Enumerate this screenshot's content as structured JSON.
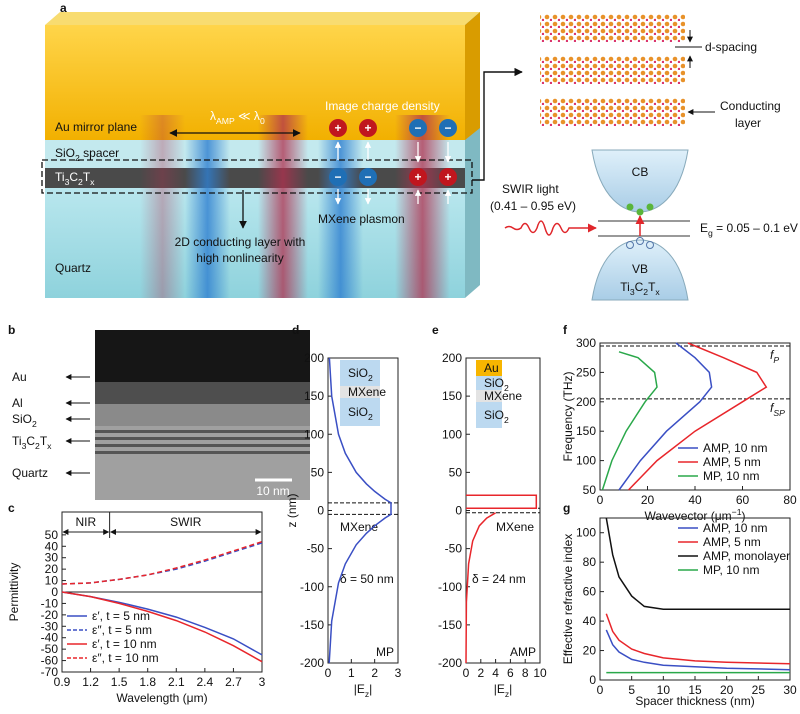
{
  "panel_a": {
    "label": "a",
    "au_mirror": "Au mirror plane",
    "wavelength_relation": [
      "λ",
      {
        "sub": "AMP"
      },
      " ≪ λ",
      {
        "sub": "0"
      }
    ],
    "image_charge": "Image charge density",
    "spacer": [
      "SiO",
      {
        "sub": "2"
      },
      " spacer"
    ],
    "mxene": [
      "Ti",
      {
        "sub": "3"
      },
      "C",
      {
        "sub": "2"
      },
      "T",
      {
        "sub": "x"
      }
    ],
    "plasmon": "MXene plasmon",
    "conducting_note": [
      "2D conducting layer with",
      "high nonlinearity"
    ],
    "quartz": "Quartz",
    "d_spacing": "d-spacing",
    "conducting_layer": [
      "Conducting",
      "layer"
    ],
    "swir": [
      "SWIR light",
      "(0.41 – 0.95 eV)"
    ],
    "cb": "CB",
    "vb": "VB",
    "gap": [
      "E",
      {
        "sub": "g"
      },
      " = 0.05 – 0.1 eV"
    ],
    "material": [
      "Ti",
      {
        "sub": "3"
      },
      "C",
      {
        "sub": "2"
      },
      "T",
      {
        "sub": "x"
      }
    ],
    "charges": {
      "positive": "+",
      "negative": "−"
    }
  },
  "panel_b": {
    "label": "b",
    "layers": [
      "Au",
      "Al",
      [
        "SiO",
        {
          "sub": "2"
        }
      ],
      [
        "Ti",
        {
          "sub": "3"
        },
        "C",
        {
          "sub": "2"
        },
        "T",
        {
          "sub": "x"
        }
      ],
      "Quartz"
    ],
    "scale_bar": "10 nm"
  },
  "chart_data": [
    {
      "type": "line",
      "panel_label": "c",
      "x": [
        0.9,
        1.2,
        1.5,
        1.8,
        2.1,
        2.4,
        2.7,
        3
      ],
      "xlim": [
        0.9,
        3
      ],
      "xticks": [
        0.9,
        1.2,
        1.5,
        1.8,
        2.1,
        2.4,
        2.7,
        3
      ],
      "ylim": [
        -70,
        70
      ],
      "yticks": [
        -70,
        -60,
        -50,
        -40,
        -30,
        -20,
        -10,
        0,
        10,
        20,
        30,
        40,
        50
      ],
      "xlabel": "Wavelength (μm)",
      "ylabel": "Permittivity",
      "regions": [
        "NIR",
        "SWIR"
      ],
      "region_boundary": 1.4,
      "legend": "lower left",
      "series": [
        {
          "name": "ε′, t = 5 nm",
          "color": "#3a4fc4",
          "dash": false,
          "values": [
            0,
            -4,
            -9,
            -15,
            -22,
            -31,
            -41,
            -55
          ]
        },
        {
          "name": "ε″, t = 5 nm",
          "color": "#3a4fc4",
          "dash": true,
          "values": [
            7,
            8,
            11,
            15,
            20,
            27,
            35,
            43
          ]
        },
        {
          "name": "ε′, t = 10 nm",
          "color": "#e8262b",
          "dash": false,
          "values": [
            0,
            -4,
            -10,
            -17,
            -25,
            -35,
            -47,
            -61
          ]
        },
        {
          "name": "ε″, t = 10 nm",
          "color": "#e8262b",
          "dash": true,
          "values": [
            7,
            8,
            11,
            15,
            21,
            28,
            36,
            44
          ]
        }
      ]
    },
    {
      "type": "line",
      "panel_label": "d",
      "xlim": [
        0,
        3
      ],
      "xticks": [
        0,
        1,
        2,
        3
      ],
      "ylim": [
        -200,
        200
      ],
      "yticks": [
        -200,
        -150,
        -100,
        -50,
        0,
        50,
        100,
        150,
        200
      ],
      "xlabel": [
        "|E",
        {
          "sub": "z"
        },
        "|"
      ],
      "ylabel": "z (nm)",
      "layers": [
        {
          "label": [
            "SiO",
            {
              "sub": "2"
            }
          ],
          "color": "#bcd9f0"
        },
        {
          "label": "MXene",
          "color": "#e3e3e3"
        },
        {
          "label": [
            "SiO",
            {
              "sub": "2"
            }
          ],
          "color": "#bcd9f0"
        }
      ],
      "annotations": [
        "MXene",
        "δ = 50 nm",
        "MP"
      ],
      "dashed_levels": [
        10,
        -5
      ],
      "series": [
        {
          "color": "#3a4fc4",
          "x": [
            0.06,
            0.16,
            0.45,
            0.74,
            1.21,
            1.64,
            2.0,
            2.44,
            2.7,
            2.7,
            2.44,
            2.0,
            1.64,
            1.21,
            0.74,
            0.45,
            0.16,
            0.05
          ],
          "values": [
            200,
            150,
            100,
            75,
            50,
            35,
            25,
            15,
            10,
            -5,
            -10,
            -20,
            -30,
            -45,
            -70,
            -95,
            -145,
            -200
          ]
        }
      ]
    },
    {
      "type": "line",
      "panel_label": "e",
      "xlim": [
        0,
        10
      ],
      "xticks": [
        0,
        2,
        4,
        6,
        8,
        10
      ],
      "ylim": [
        -200,
        200
      ],
      "yticks": [
        -200,
        -150,
        -100,
        -50,
        0,
        50,
        100,
        150,
        200
      ],
      "xlabel": [
        "|E",
        {
          "sub": "z"
        },
        "|"
      ],
      "layers": [
        {
          "label": "Au",
          "color": "#f7b500"
        },
        {
          "label": [
            "SiO",
            {
              "sub": "2"
            }
          ],
          "color": "#bcd9f0"
        },
        {
          "label": "MXene",
          "color": "#e3e3e3"
        },
        {
          "label": [
            "SiO",
            {
              "sub": "2"
            }
          ],
          "color": "#bcd9f0"
        }
      ],
      "annotations": [
        "MXene",
        "δ = 24 nm",
        "AMP"
      ],
      "dashed_levels": [
        3,
        -3
      ],
      "series": [
        {
          "color": "#e8262b",
          "x": [
            0,
            9.5,
            9.5,
            0,
            null,
            4,
            2.8,
            1.8,
            0.9,
            0.35,
            0.06,
            0
          ],
          "values": [
            20,
            20,
            3,
            3,
            null,
            -3,
            -10,
            -20,
            -40,
            -70,
            -120,
            -200
          ]
        }
      ]
    },
    {
      "type": "line",
      "panel_label": "f",
      "xlim": [
        0,
        80
      ],
      "xticks": [
        0,
        20,
        40,
        60,
        80
      ],
      "ylim": [
        50,
        300
      ],
      "yticks": [
        50,
        100,
        150,
        200,
        250,
        300
      ],
      "xlabel": [
        "Wavevector (μm",
        {
          "sup": "−1"
        },
        ")"
      ],
      "ylabel": "Frequency (THz)",
      "reference_lines": [
        {
          "value": 295,
          "label": [
            "f",
            {
              "sub": "P"
            }
          ]
        },
        {
          "value": 205,
          "label": [
            "f",
            {
              "sub": "SP"
            }
          ]
        }
      ],
      "legend": "lower right",
      "series": [
        {
          "name": "AMP, 10 nm",
          "color": "#3a4fc4",
          "x": [
            8,
            17,
            28,
            42,
            47,
            46,
            40,
            32
          ],
          "values": [
            50,
            100,
            150,
            200,
            225,
            250,
            275,
            300
          ]
        },
        {
          "name": "AMP, 5 nm",
          "color": "#e8262b",
          "x": [
            12,
            24,
            40,
            60,
            70,
            66,
            52,
            37
          ],
          "values": [
            50,
            100,
            150,
            200,
            225,
            250,
            275,
            300
          ]
        },
        {
          "name": "MP, 10 nm",
          "color": "#2aa84a",
          "x": [
            1,
            5,
            11,
            19,
            24,
            23,
            16,
            8
          ],
          "values": [
            50,
            100,
            150,
            200,
            225,
            250,
            275,
            285
          ]
        }
      ]
    },
    {
      "type": "line",
      "panel_label": "g",
      "x": [
        1,
        2,
        3,
        5,
        7,
        10,
        15,
        20,
        30
      ],
      "xlim": [
        0,
        30
      ],
      "xticks": [
        0,
        5,
        10,
        15,
        20,
        25,
        30
      ],
      "ylim": [
        0,
        110
      ],
      "yticks": [
        0,
        20,
        40,
        60,
        80,
        100
      ],
      "xlabel": "Spacer thickness (nm)",
      "ylabel": "Effective refractive index",
      "legend": "upper right",
      "series": [
        {
          "name": "AMP, 10 nm",
          "color": "#3a4fc4",
          "values": [
            34,
            24,
            19,
            14,
            12,
            10,
            9,
            8,
            7
          ]
        },
        {
          "name": "AMP, 5 nm",
          "color": "#e8262b",
          "values": [
            45,
            33,
            27,
            21,
            18,
            15,
            13,
            12,
            11
          ]
        },
        {
          "name": "AMP, monolayer",
          "color": "#111111",
          "values": [
            110,
            85,
            70,
            57,
            50,
            48,
            48,
            48,
            48
          ]
        },
        {
          "name": "MP, 10 nm",
          "color": "#2aa84a",
          "values": [
            5,
            5,
            5,
            5,
            5,
            5,
            5,
            5,
            5
          ]
        }
      ]
    }
  ]
}
